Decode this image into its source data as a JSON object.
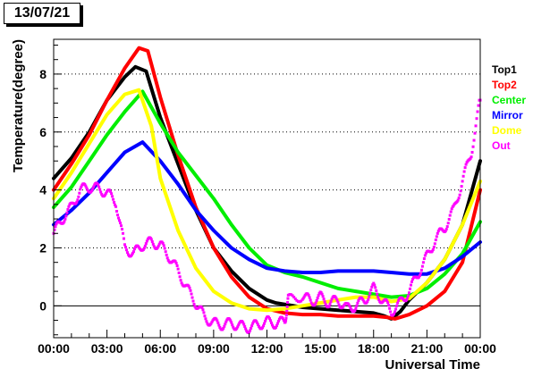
{
  "header": {
    "date": "13/07/21"
  },
  "chart_data": {
    "type": "line",
    "ylabel": "Temperature(degree)",
    "xlabel": "Universal Time",
    "ylim": [
      -1.1,
      9.2
    ],
    "xlim": [
      0,
      24
    ],
    "x_ticks": [
      0,
      3,
      6,
      9,
      12,
      15,
      18,
      21,
      24
    ],
    "x_tick_labels": [
      "00:00",
      "03:00",
      "06:00",
      "09:00",
      "12:00",
      "15:00",
      "18:00",
      "21:00",
      "00:00"
    ],
    "y_ticks": [
      0,
      2,
      4,
      6,
      8
    ],
    "y_tick_labels": [
      "0",
      "2",
      "4",
      "6",
      "8"
    ],
    "grid": "horizontal dotted",
    "legend_position": "right",
    "series": [
      {
        "name": "Top1",
        "color": "#000000",
        "points": [
          [
            0,
            4.4
          ],
          [
            1,
            5.1
          ],
          [
            2,
            6.0
          ],
          [
            3,
            7.1
          ],
          [
            4,
            7.9
          ],
          [
            4.6,
            8.25
          ],
          [
            5.2,
            8.1
          ],
          [
            6,
            6.5
          ],
          [
            7,
            4.9
          ],
          [
            8,
            3.3
          ],
          [
            9,
            2.0
          ],
          [
            10,
            1.2
          ],
          [
            11,
            0.6
          ],
          [
            12,
            0.2
          ],
          [
            12.5,
            0.1
          ],
          [
            13,
            0.05
          ],
          [
            14,
            -0.05
          ],
          [
            15,
            -0.1
          ],
          [
            16,
            -0.15
          ],
          [
            17,
            -0.2
          ],
          [
            18,
            -0.25
          ],
          [
            18.6,
            -0.35
          ],
          [
            19,
            -0.45
          ],
          [
            19.5,
            -0.2
          ],
          [
            20,
            0.2
          ],
          [
            21,
            0.8
          ],
          [
            22,
            1.6
          ],
          [
            23,
            2.8
          ],
          [
            24,
            5.0
          ]
        ]
      },
      {
        "name": "Top2",
        "color": "#ff0000",
        "points": [
          [
            0,
            4.0
          ],
          [
            1,
            4.9
          ],
          [
            2,
            5.9
          ],
          [
            3,
            7.1
          ],
          [
            4,
            8.2
          ],
          [
            4.8,
            8.9
          ],
          [
            5.3,
            8.8
          ],
          [
            6,
            7.2
          ],
          [
            7,
            5.2
          ],
          [
            8,
            3.4
          ],
          [
            9,
            2.0
          ],
          [
            10,
            1.0
          ],
          [
            11,
            0.3
          ],
          [
            12,
            -0.1
          ],
          [
            13,
            -0.25
          ],
          [
            14,
            -0.3
          ],
          [
            15,
            -0.3
          ],
          [
            16,
            -0.35
          ],
          [
            17,
            -0.35
          ],
          [
            18,
            -0.35
          ],
          [
            18.8,
            -0.4
          ],
          [
            19.2,
            -0.45
          ],
          [
            20,
            -0.3
          ],
          [
            21,
            0.0
          ],
          [
            22,
            0.5
          ],
          [
            23,
            1.5
          ],
          [
            24,
            4.0
          ]
        ]
      },
      {
        "name": "Center",
        "color": "#00ee00",
        "points": [
          [
            0,
            3.4
          ],
          [
            1,
            4.1
          ],
          [
            2,
            5.0
          ],
          [
            3,
            5.9
          ],
          [
            4,
            6.7
          ],
          [
            5,
            7.4
          ],
          [
            6,
            6.3
          ],
          [
            7,
            5.3
          ],
          [
            8,
            4.5
          ],
          [
            9,
            3.7
          ],
          [
            10,
            2.8
          ],
          [
            11,
            2.0
          ],
          [
            12,
            1.4
          ],
          [
            13,
            1.15
          ],
          [
            14,
            1.0
          ],
          [
            15,
            0.8
          ],
          [
            16,
            0.6
          ],
          [
            17,
            0.5
          ],
          [
            18,
            0.4
          ],
          [
            19,
            0.3
          ],
          [
            20,
            0.35
          ],
          [
            21,
            0.6
          ],
          [
            22,
            1.1
          ],
          [
            23,
            1.8
          ],
          [
            24,
            2.9
          ]
        ]
      },
      {
        "name": "Mirror",
        "color": "#0000ff",
        "points": [
          [
            0,
            2.8
          ],
          [
            1,
            3.3
          ],
          [
            2,
            3.9
          ],
          [
            3,
            4.6
          ],
          [
            4,
            5.3
          ],
          [
            5,
            5.65
          ],
          [
            6,
            5.0
          ],
          [
            7,
            4.2
          ],
          [
            8,
            3.3
          ],
          [
            9,
            2.6
          ],
          [
            10,
            2.0
          ],
          [
            11,
            1.6
          ],
          [
            12,
            1.3
          ],
          [
            13,
            1.2
          ],
          [
            14,
            1.15
          ],
          [
            15,
            1.15
          ],
          [
            16,
            1.2
          ],
          [
            17,
            1.2
          ],
          [
            18,
            1.2
          ],
          [
            19,
            1.15
          ],
          [
            20,
            1.1
          ],
          [
            21,
            1.1
          ],
          [
            22,
            1.3
          ],
          [
            23,
            1.7
          ],
          [
            24,
            2.2
          ]
        ]
      },
      {
        "name": "Dome",
        "color": "#ffff00",
        "points": [
          [
            0,
            3.7
          ],
          [
            1,
            4.6
          ],
          [
            2,
            5.6
          ],
          [
            3,
            6.6
          ],
          [
            4,
            7.3
          ],
          [
            4.8,
            7.45
          ],
          [
            5.5,
            6.2
          ],
          [
            6,
            4.4
          ],
          [
            7,
            2.6
          ],
          [
            8,
            1.3
          ],
          [
            9,
            0.5
          ],
          [
            10,
            0.1
          ],
          [
            11,
            -0.1
          ],
          [
            12,
            -0.15
          ],
          [
            13,
            -0.1
          ],
          [
            14,
            0.0
          ],
          [
            15,
            0.1
          ],
          [
            16,
            0.2
          ],
          [
            17,
            0.3
          ],
          [
            18,
            0.3
          ],
          [
            19,
            0.15
          ],
          [
            20,
            0.25
          ],
          [
            21,
            0.8
          ],
          [
            22,
            1.6
          ],
          [
            23,
            2.8
          ],
          [
            24,
            4.3
          ]
        ]
      },
      {
        "name": "Out",
        "color": "#ff00ff",
        "style": "markers",
        "points": [
          [
            0,
            2.5
          ],
          [
            0.5,
            3.0
          ],
          [
            1,
            3.4
          ],
          [
            1.5,
            4.0
          ],
          [
            2,
            4.1
          ],
          [
            2.5,
            4.05
          ],
          [
            3,
            3.9
          ],
          [
            3.5,
            3.6
          ],
          [
            4,
            2.0
          ],
          [
            4.5,
            1.8
          ],
          [
            5,
            2.1
          ],
          [
            5.5,
            2.2
          ],
          [
            6,
            2.1
          ],
          [
            6.5,
            1.7
          ],
          [
            7,
            1.2
          ],
          [
            7.5,
            0.6
          ],
          [
            8,
            0.1
          ],
          [
            8.5,
            -0.4
          ],
          [
            9,
            -0.6
          ],
          [
            9.5,
            -0.65
          ],
          [
            10,
            -0.6
          ],
          [
            10.5,
            -0.7
          ],
          [
            11,
            -0.75
          ],
          [
            11.5,
            -0.65
          ],
          [
            12,
            -0.55
          ],
          [
            12.5,
            -0.6
          ],
          [
            13,
            -0.55
          ],
          [
            13.2,
            0.2
          ],
          [
            14,
            0.35
          ],
          [
            14.5,
            0.15
          ],
          [
            15,
            0.3
          ],
          [
            15.5,
            0.1
          ],
          [
            16,
            0.2
          ],
          [
            16.5,
            -0.1
          ],
          [
            17,
            0.0
          ],
          [
            17.5,
            0.2
          ],
          [
            18,
            0.6
          ],
          [
            18.5,
            0.2
          ],
          [
            19,
            -0.2
          ],
          [
            19.5,
            0.1
          ],
          [
            20,
            0.5
          ],
          [
            20.5,
            1.1
          ],
          [
            21,
            1.7
          ],
          [
            21.5,
            2.3
          ],
          [
            22,
            2.7
          ],
          [
            22.5,
            3.3
          ],
          [
            23,
            4.3
          ],
          [
            23.5,
            5.3
          ],
          [
            24,
            7.1
          ]
        ]
      }
    ]
  }
}
